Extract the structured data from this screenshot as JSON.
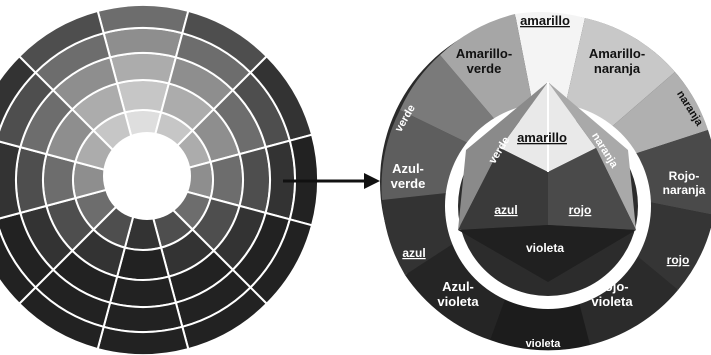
{
  "colors": {
    "white": "#ffffff",
    "black": "#111111",
    "shade_1": "#f2f2f2",
    "shade_2": "#dedede",
    "shade_3": "#c6c6c6",
    "shade_4": "#acacac",
    "shade_5": "#8e8e8e",
    "shade_6": "#6d6d6d",
    "shade_7": "#4e4e4e",
    "shade_8": "#333333",
    "shade_9": "#222222"
  },
  "left_wheel": {
    "rings": 5,
    "sectors": 12
  },
  "arrow": {
    "icon": "arrow-right-icon"
  },
  "right_wheel": {
    "outer_segments": [
      {
        "key": "amarillo",
        "lines": [
          "amarillo"
        ],
        "underline": true
      },
      {
        "key": "amarillo-naranja",
        "lines": [
          "Amarillo-",
          "naranja"
        ],
        "underline": false
      },
      {
        "key": "rojo-naranja",
        "lines": [
          "Rojo-",
          "naranja"
        ],
        "underline": false
      },
      {
        "key": "rojo",
        "lines": [
          "rojo"
        ],
        "underline": true
      },
      {
        "key": "rojo-violeta",
        "lines": [
          "Rojo-",
          "violeta"
        ],
        "underline": false
      },
      {
        "key": "violeta",
        "lines": [
          "violeta"
        ],
        "underline": false
      },
      {
        "key": "azul-violeta",
        "lines": [
          "Azul-",
          "violeta"
        ],
        "underline": false
      },
      {
        "key": "azul",
        "lines": [
          "azul"
        ],
        "underline": true
      },
      {
        "key": "azul-verde",
        "lines": [
          "Azul-",
          "verde"
        ],
        "underline": false
      },
      {
        "key": "verde",
        "lines": [
          "verde"
        ],
        "underline": false
      },
      {
        "key": "amarillo-verde",
        "lines": [
          "Amarillo-",
          "verde"
        ],
        "underline": false
      }
    ],
    "naranja_outer": "naranja",
    "inner": {
      "amarillo": "amarillo",
      "verde": "verde",
      "naranja": "naranja",
      "azul": "azul",
      "rojo": "rojo",
      "violeta": "violeta"
    }
  }
}
